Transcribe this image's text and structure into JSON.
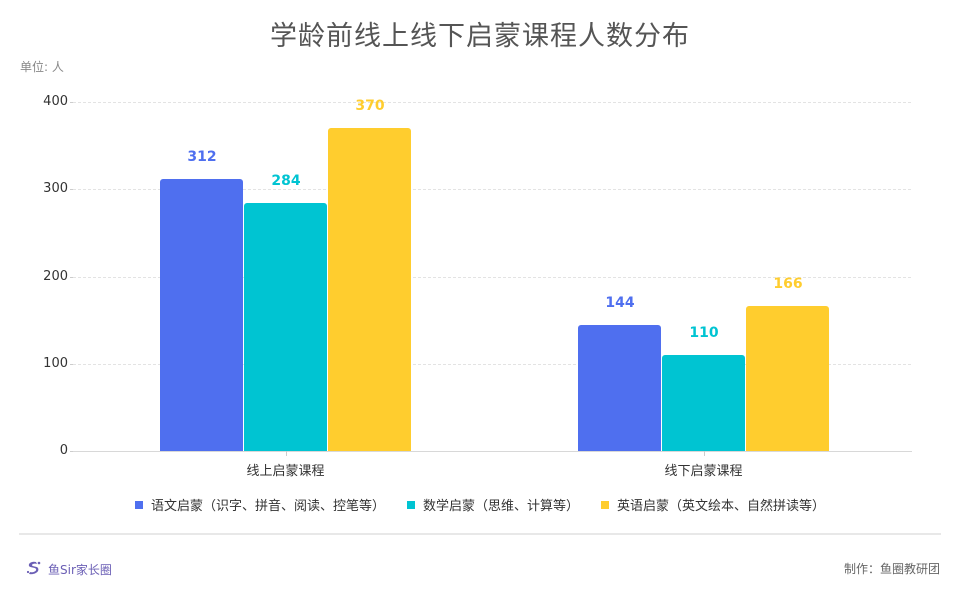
{
  "header": {
    "title": "学龄前线上线下启蒙课程人数分布",
    "unit": "单位: 人"
  },
  "footer": {
    "logo_text": "鱼Sir家长圈",
    "credit": "制作：鱼圈教研团"
  },
  "colors": {
    "chinese": "#4F6FEF",
    "math": "#00C4D2",
    "english": "#FFCD2E"
  },
  "chart_data": {
    "type": "bar",
    "title": "学龄前线上线下启蒙课程人数分布",
    "ylabel": "单位: 人",
    "xlabel": "",
    "ylim": [
      0,
      400
    ],
    "yticks": [
      0,
      100,
      200,
      300,
      400
    ],
    "grid": true,
    "legend_position": "bottom",
    "categories": [
      "线上启蒙课程",
      "线下启蒙课程"
    ],
    "series": [
      {
        "name": "语文启蒙（识字、拼音、阅读、控笔等）",
        "color": "#4F6FEF",
        "values": [
          312,
          144
        ]
      },
      {
        "name": "数学启蒙（思维、计算等）",
        "color": "#00C4D2",
        "values": [
          284,
          110
        ]
      },
      {
        "name": "英语启蒙（英文绘本、自然拼读等）",
        "color": "#FFCD2E",
        "values": [
          370,
          166
        ]
      }
    ]
  }
}
